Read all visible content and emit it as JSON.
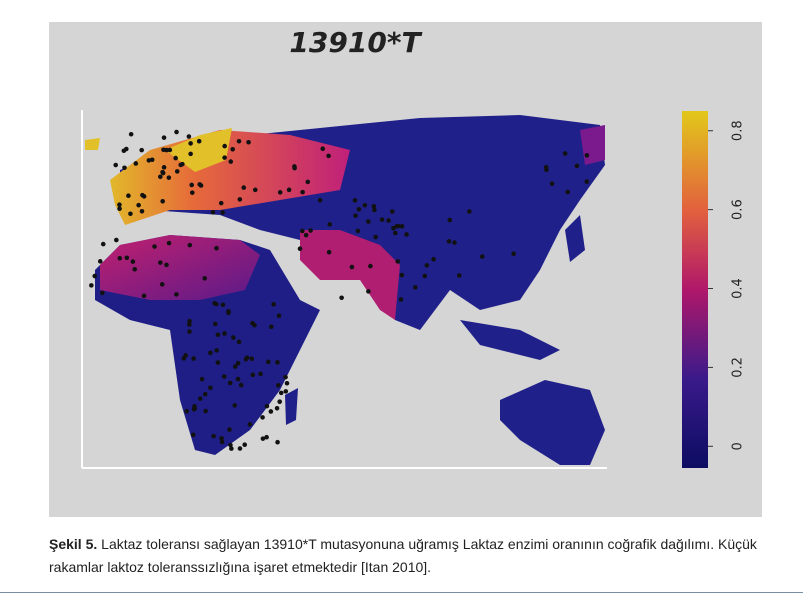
{
  "figure": {
    "title": "13910*T",
    "colorbar": {
      "lim": [
        -0.055,
        0.85
      ],
      "ticks": [
        0,
        0.2,
        0.4,
        0.6,
        0.8
      ]
    }
  },
  "caption": {
    "label": "Şekil 5.",
    "text": "Laktaz toleransı sağlayan 13910*T mutasyonuna uğramış Laktaz enzimi oranının coğrafik dağılımı.  Küçük rakamlar laktoz toleranssızlığına işaret etmektedir [Itan 2010]."
  }
}
